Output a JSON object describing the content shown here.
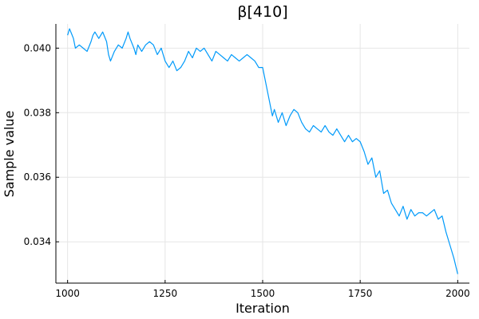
{
  "chart_data": {
    "type": "line",
    "title": "β[410]",
    "xlabel": "Iteration",
    "ylabel": "Sample value",
    "xlim": [
      970,
      2030
    ],
    "ylim": [
      0.03272,
      0.04075
    ],
    "grid": true,
    "legend": "none",
    "x_ticks": [
      1000,
      1250,
      1500,
      1750,
      2000
    ],
    "x_tick_labels": [
      "1000",
      "1250",
      "1500",
      "1750",
      "2000"
    ],
    "y_ticks": [
      0.034,
      0.036,
      0.038,
      0.04
    ],
    "y_tick_labels": [
      "0.034",
      "0.036",
      "0.038",
      "0.040"
    ],
    "colors": {
      "series": "#009AFA"
    },
    "series": [
      {
        "color": "#009AFA",
        "x": [
          1000,
          1005,
          1010,
          1015,
          1020,
          1030,
          1040,
          1050,
          1060,
          1065,
          1070,
          1080,
          1090,
          1100,
          1105,
          1110,
          1120,
          1130,
          1140,
          1150,
          1155,
          1160,
          1170,
          1175,
          1180,
          1190,
          1200,
          1210,
          1220,
          1230,
          1240,
          1250,
          1260,
          1270,
          1280,
          1290,
          1300,
          1310,
          1320,
          1330,
          1340,
          1350,
          1360,
          1370,
          1380,
          1390,
          1400,
          1410,
          1420,
          1430,
          1440,
          1450,
          1460,
          1470,
          1480,
          1490,
          1500,
          1505,
          1510,
          1515,
          1520,
          1525,
          1530,
          1540,
          1550,
          1560,
          1570,
          1580,
          1590,
          1600,
          1610,
          1620,
          1630,
          1640,
          1650,
          1660,
          1670,
          1680,
          1690,
          1700,
          1710,
          1720,
          1730,
          1740,
          1750,
          1760,
          1770,
          1780,
          1790,
          1800,
          1810,
          1820,
          1830,
          1840,
          1850,
          1860,
          1870,
          1880,
          1890,
          1900,
          1910,
          1920,
          1930,
          1940,
          1950,
          1960,
          1970,
          1980,
          1990,
          2000
        ],
        "y": [
          0.0404,
          0.0406,
          0.04045,
          0.0403,
          0.04,
          0.0401,
          0.04,
          0.0399,
          0.0402,
          0.0404,
          0.0405,
          0.0403,
          0.0405,
          0.0402,
          0.0398,
          0.0396,
          0.0399,
          0.0401,
          0.04,
          0.0403,
          0.0405,
          0.0403,
          0.04,
          0.0398,
          0.0401,
          0.0399,
          0.0401,
          0.0402,
          0.0401,
          0.0398,
          0.04,
          0.0396,
          0.0394,
          0.0396,
          0.0393,
          0.0394,
          0.0396,
          0.0399,
          0.0397,
          0.04,
          0.0399,
          0.04,
          0.0398,
          0.0396,
          0.0399,
          0.0398,
          0.0397,
          0.0396,
          0.0398,
          0.0397,
          0.0396,
          0.0397,
          0.0398,
          0.0397,
          0.0396,
          0.0394,
          0.0394,
          0.0391,
          0.0388,
          0.0385,
          0.0382,
          0.0379,
          0.0381,
          0.0377,
          0.038,
          0.0376,
          0.0379,
          0.0381,
          0.038,
          0.0377,
          0.0375,
          0.0374,
          0.0376,
          0.0375,
          0.0374,
          0.0376,
          0.0374,
          0.0373,
          0.0375,
          0.0373,
          0.0371,
          0.0373,
          0.0371,
          0.0372,
          0.0371,
          0.0368,
          0.0364,
          0.0366,
          0.036,
          0.0362,
          0.0355,
          0.0356,
          0.0352,
          0.035,
          0.0348,
          0.0351,
          0.0347,
          0.035,
          0.0348,
          0.0349,
          0.0349,
          0.0348,
          0.0349,
          0.035,
          0.0347,
          0.0348,
          0.0343,
          0.0339,
          0.0335,
          0.033
        ]
      }
    ]
  }
}
